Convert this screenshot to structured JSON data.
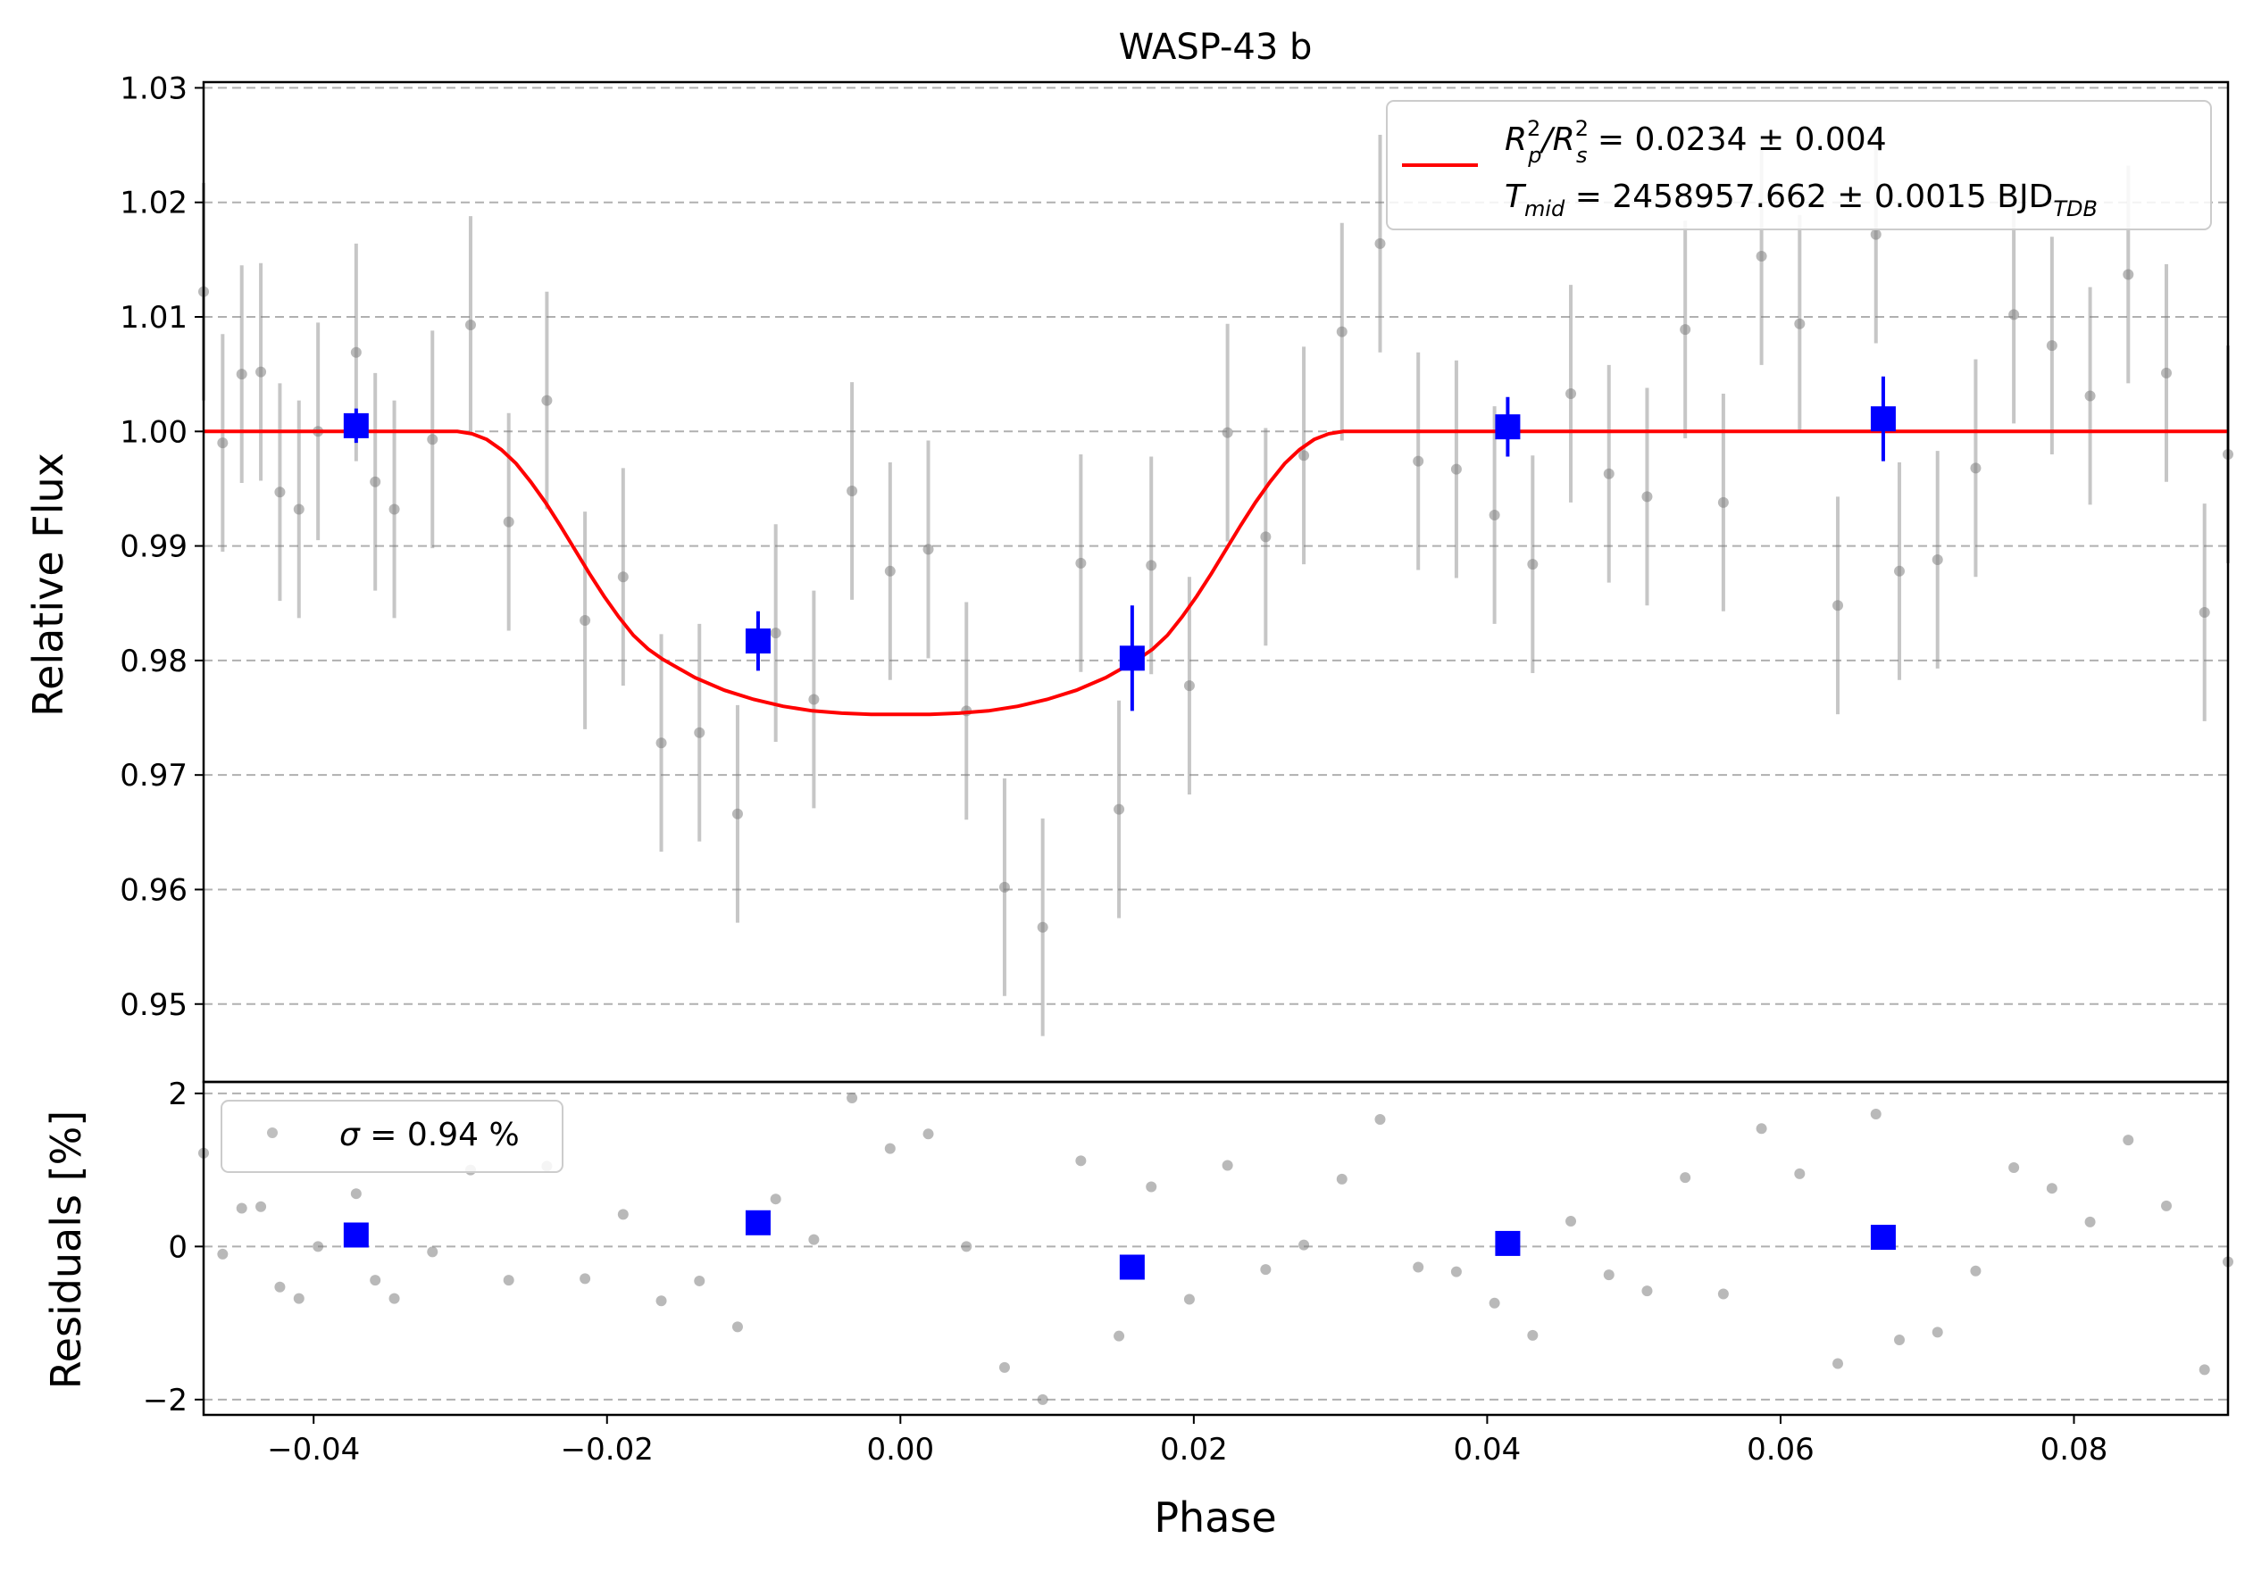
{
  "chart_data": [
    {
      "type": "scatter",
      "panel": "light-curve",
      "title": "WASP-43 b",
      "xlabel": "",
      "ylabel": "Relative Flux",
      "xlim": [
        -0.0475,
        0.0905
      ],
      "ylim": [
        0.9432,
        1.0305
      ],
      "yticks": [
        0.95,
        0.96,
        0.97,
        0.98,
        0.99,
        1.0,
        1.01,
        1.02,
        1.03
      ],
      "ytick_labels": [
        "0.95",
        "0.96",
        "0.97",
        "0.98",
        "0.99",
        "1.00",
        "1.01",
        "1.02",
        "1.03"
      ],
      "grid": "horizontal dashed",
      "legend": {
        "placement": "top-right",
        "model_label_lines": [
          {
            "text": "R",
            "sup1": "2",
            "sub1": "p",
            "mid": "/R",
            "sup2": "2",
            "sub2": "s",
            "tail": " = 0.0234 ± 0.004"
          },
          {
            "text": "T",
            "sub1": "mid",
            "tail": " = 2458957.662 ± 0.0015 BJD",
            "sub_end": "TDB"
          }
        ]
      },
      "series": [
        {
          "kind": "data",
          "color": "#808080",
          "x": [
            -0.0475,
            -0.0462,
            -0.0449,
            -0.0436,
            -0.0423,
            -0.041,
            -0.0397,
            -0.0371,
            -0.0358,
            -0.0345,
            -0.0319,
            -0.0293,
            -0.0267,
            -0.0241,
            -0.0215,
            -0.0189,
            -0.0163,
            -0.0137,
            -0.0111,
            -0.0085,
            -0.0059,
            -0.0033,
            -0.0007,
            0.0019,
            0.0045,
            0.0071,
            0.0097,
            0.0123,
            0.0149,
            0.0171,
            0.0197,
            0.0223,
            0.0249,
            0.0275,
            0.0301,
            0.0327,
            0.0353,
            0.0379,
            0.0405,
            0.0431,
            0.0457,
            0.0483,
            0.0509,
            0.0535,
            0.0561,
            0.0587,
            0.0613,
            0.0639,
            0.0665,
            0.0681,
            0.0707,
            0.0733,
            0.0759,
            0.0785,
            0.0811,
            0.0837,
            0.0863,
            0.0889,
            0.0905
          ],
          "y": [
            1.0122,
            0.999,
            1.005,
            1.0052,
            0.9947,
            0.9932,
            1.0,
            1.0069,
            0.9956,
            0.9932,
            0.9993,
            1.0093,
            0.9921,
            1.0027,
            0.9835,
            0.9873,
            0.9728,
            0.9737,
            0.9666,
            0.9824,
            0.9766,
            0.9948,
            0.9878,
            0.9897,
            0.9756,
            0.9602,
            0.9567,
            0.9885,
            0.967,
            0.9883,
            0.9778,
            0.9999,
            0.9908,
            0.9979,
            1.0087,
            1.0164,
            0.9974,
            0.9967,
            0.9927,
            0.9884,
            1.0033,
            0.9963,
            0.9943,
            1.0089,
            0.9938,
            1.0153,
            1.0094,
            0.9848,
            1.0172,
            0.9878,
            0.9888,
            0.9968,
            1.0102,
            1.0075,
            1.0031,
            1.0137,
            1.0051,
            0.9842,
            0.998
          ],
          "yerr": 0.0095
        },
        {
          "kind": "binned",
          "color": "#0000ff",
          "x": [
            -0.0371,
            -0.0097,
            0.0158,
            0.0414,
            0.067
          ],
          "y": [
            1.0005,
            0.9817,
            0.9802,
            1.0004,
            1.0011
          ],
          "yerr": [
            0.0015,
            0.0026,
            0.0046,
            0.0026,
            0.0037
          ]
        },
        {
          "kind": "model",
          "color": "#ff0000",
          "x": [
            -0.0475,
            -0.0302,
            -0.0292,
            -0.0282,
            -0.0272,
            -0.0262,
            -0.0252,
            -0.0242,
            -0.0232,
            -0.0222,
            -0.0212,
            -0.0202,
            -0.0192,
            -0.0182,
            -0.0172,
            -0.0162,
            -0.014,
            -0.012,
            -0.01,
            -0.008,
            -0.006,
            -0.004,
            -0.002,
            0.0,
            0.002,
            0.004,
            0.006,
            0.008,
            0.01,
            0.012,
            0.014,
            0.0162,
            0.0172,
            0.0182,
            0.0192,
            0.0202,
            0.0212,
            0.0222,
            0.0232,
            0.0242,
            0.0252,
            0.0262,
            0.0272,
            0.0282,
            0.0292,
            0.0302,
            0.0905
          ],
          "y": [
            1.0,
            1.0,
            0.9998,
            0.9993,
            0.9984,
            0.9972,
            0.9956,
            0.9938,
            0.9918,
            0.9897,
            0.9876,
            0.9856,
            0.9838,
            0.9822,
            0.981,
            0.9801,
            0.9785,
            0.9774,
            0.9766,
            0.976,
            0.9756,
            0.9754,
            0.9753,
            0.9753,
            0.9753,
            0.9754,
            0.9756,
            0.976,
            0.9766,
            0.9774,
            0.9785,
            0.9801,
            0.981,
            0.9822,
            0.9838,
            0.9856,
            0.9876,
            0.9897,
            0.9918,
            0.9938,
            0.9956,
            0.9972,
            0.9984,
            0.9993,
            0.9998,
            1.0,
            1.0
          ]
        }
      ]
    },
    {
      "type": "scatter",
      "panel": "residuals",
      "xlabel": "Phase",
      "ylabel": "Residuals [%]",
      "xlim": [
        -0.0475,
        0.0905
      ],
      "ylim": [
        -2.2,
        2.15
      ],
      "xticks": [
        -0.04,
        -0.02,
        0.0,
        0.02,
        0.04,
        0.06,
        0.08
      ],
      "xtick_labels": [
        "−0.04",
        "−0.02",
        "0.00",
        "0.02",
        "0.04",
        "0.06",
        "0.08"
      ],
      "yticks": [
        -2,
        0,
        2
      ],
      "ytick_labels": [
        "−2",
        "0",
        "2"
      ],
      "grid": "horizontal dashed",
      "legend": {
        "placement": "top-left",
        "label_symbol": "σ",
        "label_tail": " = 0.94 %"
      },
      "series": [
        {
          "kind": "data",
          "color": "#808080",
          "x": [
            -0.0475,
            -0.0462,
            -0.0449,
            -0.0436,
            -0.0423,
            -0.041,
            -0.0397,
            -0.0371,
            -0.0358,
            -0.0345,
            -0.0319,
            -0.0293,
            -0.0267,
            -0.0241,
            -0.0215,
            -0.0189,
            -0.0163,
            -0.0137,
            -0.0111,
            -0.0085,
            -0.0059,
            -0.0033,
            -0.0007,
            0.0019,
            0.0045,
            0.0071,
            0.0097,
            0.0123,
            0.0149,
            0.0171,
            0.0197,
            0.0223,
            0.0249,
            0.0275,
            0.0301,
            0.0327,
            0.0353,
            0.0379,
            0.0405,
            0.0431,
            0.0457,
            0.0483,
            0.0509,
            0.0535,
            0.0561,
            0.0587,
            0.0613,
            0.0639,
            0.0665,
            0.0681,
            0.0707,
            0.0733,
            0.0759,
            0.0785,
            0.0811,
            0.0837,
            0.0863,
            0.0889,
            0.0905
          ],
          "y": [
            1.22,
            -0.1,
            0.5,
            0.52,
            -0.53,
            -0.68,
            0.0,
            0.69,
            -0.44,
            -0.68,
            -0.07,
            1.0,
            -0.44,
            1.05,
            -0.42,
            0.42,
            -0.71,
            -0.45,
            -1.05,
            0.62,
            0.09,
            1.94,
            1.28,
            1.47,
            0.0,
            -1.58,
            -2.0,
            1.12,
            -1.17,
            0.78,
            -0.69,
            1.06,
            -0.3,
            0.02,
            0.88,
            1.66,
            -0.27,
            -0.33,
            -0.74,
            -1.16,
            0.33,
            -0.37,
            -0.58,
            0.9,
            -0.62,
            1.54,
            0.95,
            -1.53,
            1.73,
            -1.22,
            -1.12,
            -0.32,
            1.03,
            0.76,
            0.32,
            1.39,
            0.53,
            -1.61,
            -0.2
          ]
        },
        {
          "kind": "binned",
          "color": "#0000ff",
          "x": [
            -0.0371,
            -0.0097,
            0.0158,
            0.0414,
            0.067
          ],
          "y": [
            0.15,
            0.31,
            -0.27,
            0.04,
            0.12
          ]
        }
      ]
    }
  ]
}
